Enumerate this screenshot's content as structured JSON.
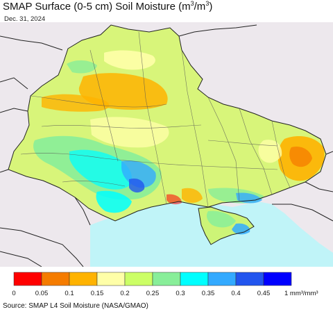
{
  "title": {
    "prefix": "SMAP Surface (0-5 cm) Soil Moisture (m",
    "sup1": "3",
    "mid": "/m",
    "sup2": "3",
    "suffix": ")"
  },
  "date": "Dec. 31, 2024",
  "source": "Source: SMAP L4 Soil Moisture (NASA/GMAO)",
  "legend": {
    "unit": "1 mm³/mm³",
    "ticks": [
      "0",
      "0.05",
      "0.1",
      "0.15",
      "0.2",
      "0.25",
      "0.3",
      "0.35",
      "0.4",
      "0.45"
    ],
    "colors": [
      "#ff0000",
      "#f57c00",
      "#ffb300",
      "#ffffa8",
      "#ccff66",
      "#88ee99",
      "#00ffff",
      "#33aaff",
      "#2255ee",
      "#0000ff"
    ]
  },
  "map": {
    "land_color": "#ede8ed",
    "sea_color": "#c0f4f8"
  }
}
